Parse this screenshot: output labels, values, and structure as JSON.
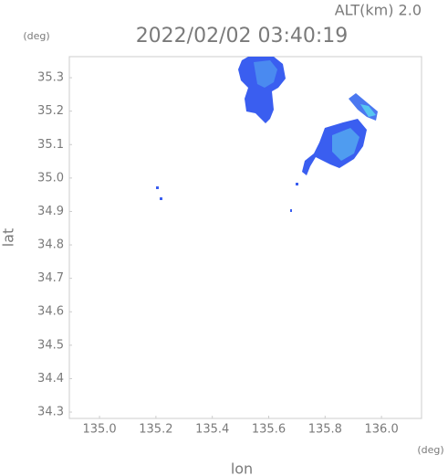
{
  "chart_data": {
    "type": "map",
    "title": "2022/02/02 03:40:19",
    "subtitle": "ALT(km) 2.0",
    "x_label": "lon",
    "y_label": "lat",
    "x_unit": "(deg)",
    "y_unit": "(deg)",
    "xlim": [
      134.893,
      136.142
    ],
    "ylim": [
      34.281,
      35.363
    ],
    "xticks": [
      {
        "value": 135.0,
        "label": "135.0"
      },
      135.2,
      135.4,
      135.6,
      135.8,
      {
        "value": 136.0,
        "label": "136.0"
      }
    ],
    "yticks": [
      35.3,
      35.2,
      35.1,
      {
        "value": 35.0,
        "label": "35.0"
      },
      34.9,
      34.8,
      34.7,
      34.6,
      34.5,
      34.4,
      34.3
    ],
    "grid": false
  }
}
